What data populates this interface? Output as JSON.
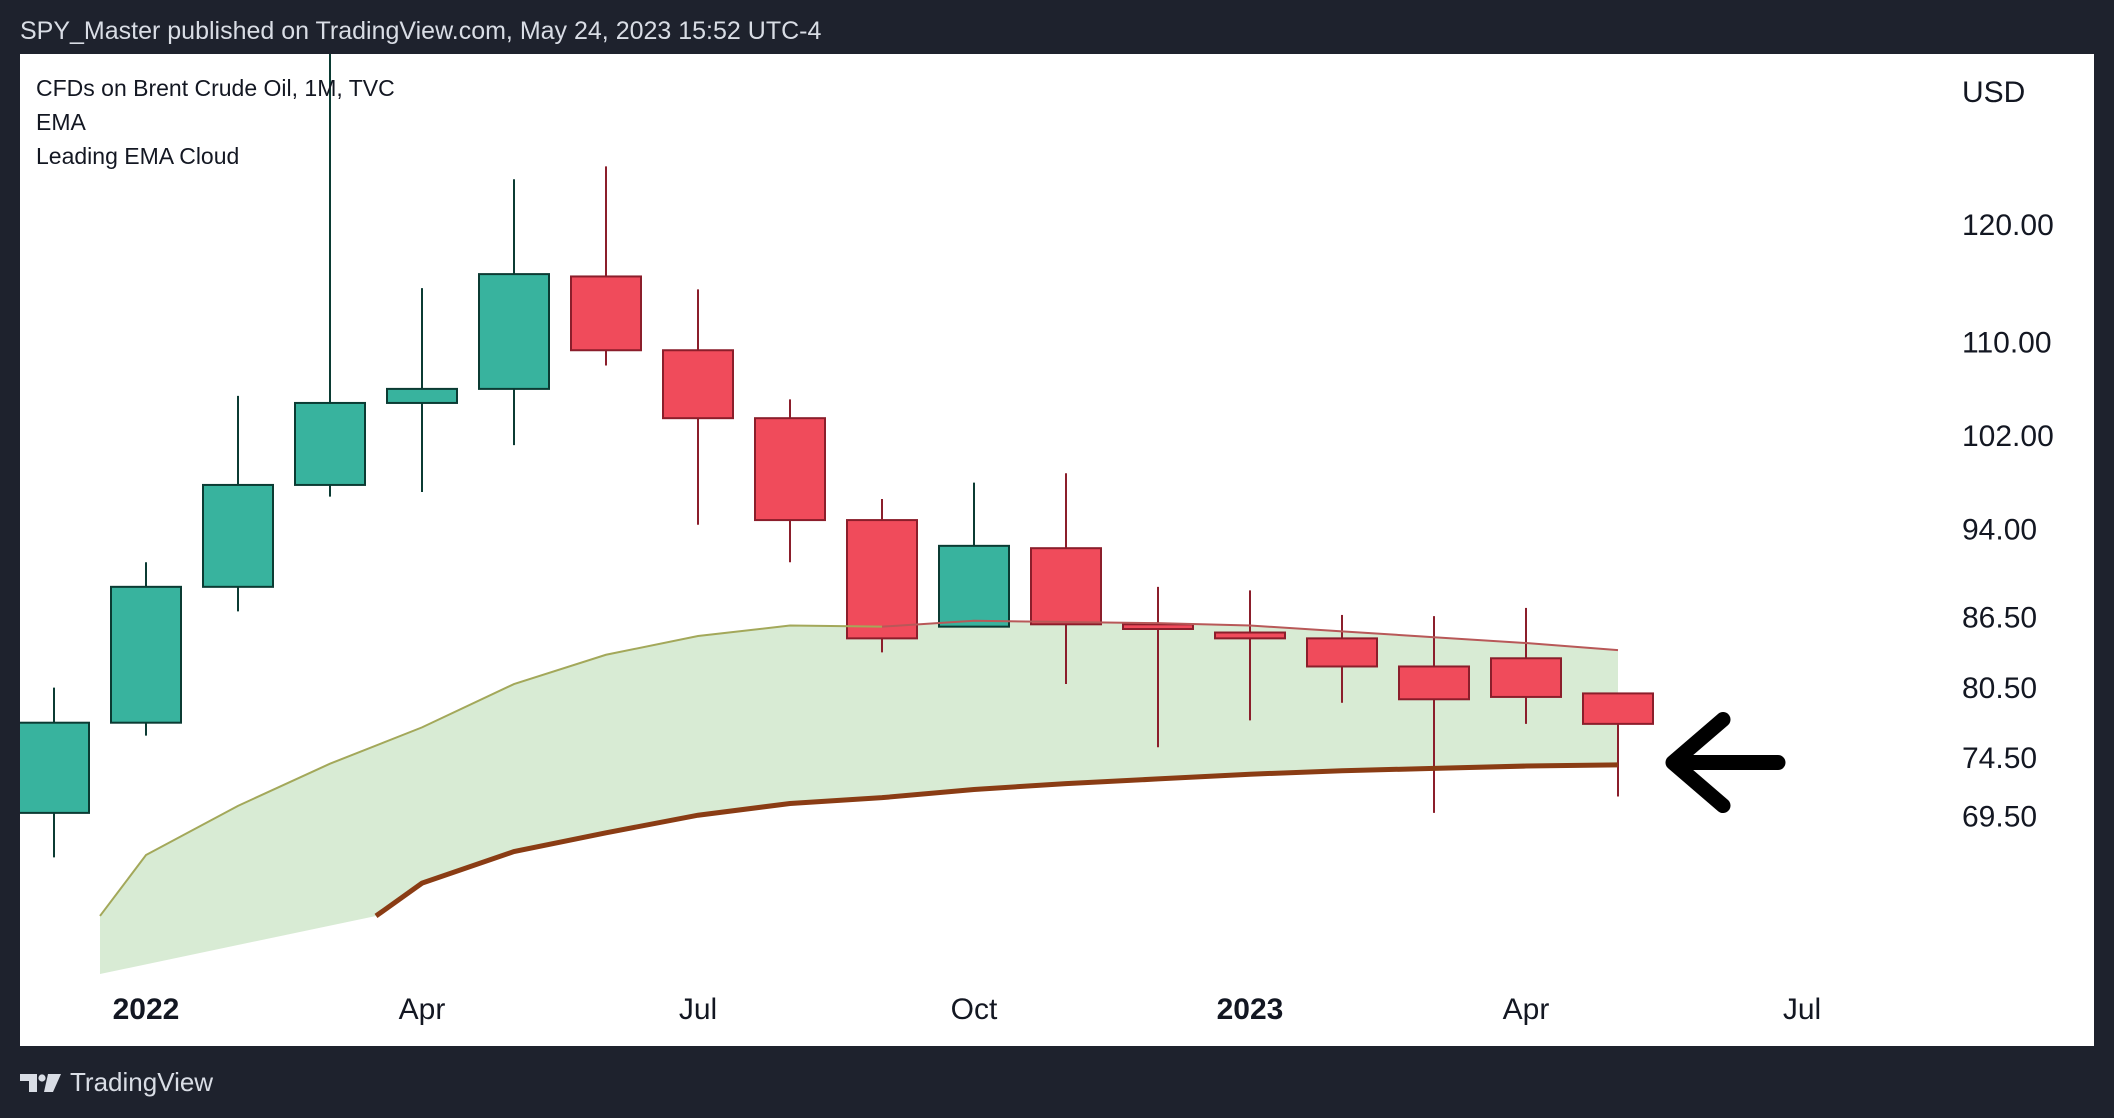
{
  "header": {
    "publish_text": "SPY_Master published on TradingView.com, May 24, 2023 15:52 UTC-4"
  },
  "footer": {
    "brand": "TradingView"
  },
  "colors": {
    "bull": "#38b39e",
    "bear": "#f04b5b",
    "bull_wick": "#0b3b33",
    "bear_wick": "#8b1e2b",
    "cloud_fill": "#d8ebd4",
    "ema_fast": "#a3a85a",
    "ema_slow": "#8a3c14",
    "ema_fast_bear": "#b85858",
    "arrow": "#000000"
  },
  "chart_data": {
    "type": "candlestick",
    "title": "CFDs on Brent Crude Oil, 1M, TVC",
    "indicators": [
      "EMA",
      "Leading EMA Cloud"
    ],
    "currency_label": "USD",
    "y_ticks": [
      "120.00",
      "110.00",
      "102.00",
      "94.00",
      "86.50",
      "80.50",
      "74.50",
      "69.50"
    ],
    "x_ticks": [
      {
        "label": "2022",
        "bold": true,
        "month_index": 1
      },
      {
        "label": "Apr",
        "bold": false,
        "month_index": 4
      },
      {
        "label": "Jul",
        "bold": false,
        "month_index": 7
      },
      {
        "label": "Oct",
        "bold": false,
        "month_index": 10
      },
      {
        "label": "2023",
        "bold": true,
        "month_index": 13
      },
      {
        "label": "Apr",
        "bold": false,
        "month_index": 16
      },
      {
        "label": "Jul",
        "bold": false,
        "month_index": 19
      }
    ],
    "candles": [
      {
        "month": "2021-12",
        "month_index": 0,
        "open": 70.0,
        "high": 80.7,
        "low": 66.2,
        "close": 77.7
      },
      {
        "month": "2022-01",
        "month_index": 1,
        "open": 77.7,
        "high": 91.4,
        "low": 76.6,
        "close": 89.3
      },
      {
        "month": "2022-02",
        "month_index": 2,
        "open": 89.3,
        "high": 105.6,
        "low": 87.2,
        "close": 98.0
      },
      {
        "month": "2022-03",
        "month_index": 3,
        "open": 98.0,
        "high": 139.1,
        "low": 97.0,
        "close": 105.0
      },
      {
        "month": "2022-04",
        "month_index": 4,
        "open": 105.0,
        "high": 114.8,
        "low": 97.4,
        "close": 106.2
      },
      {
        "month": "2022-05",
        "month_index": 5,
        "open": 106.2,
        "high": 124.1,
        "low": 101.4,
        "close": 116.0
      },
      {
        "month": "2022-06",
        "month_index": 6,
        "open": 115.8,
        "high": 125.2,
        "low": 108.2,
        "close": 109.5
      },
      {
        "month": "2022-07",
        "month_index": 7,
        "open": 109.5,
        "high": 114.7,
        "low": 94.6,
        "close": 103.7
      },
      {
        "month": "2022-08",
        "month_index": 8,
        "open": 103.7,
        "high": 105.3,
        "low": 91.4,
        "close": 95.0
      },
      {
        "month": "2022-09",
        "month_index": 9,
        "open": 95.0,
        "high": 96.8,
        "low": 83.7,
        "close": 84.9
      },
      {
        "month": "2022-10",
        "month_index": 10,
        "open": 85.9,
        "high": 98.2,
        "low": 85.9,
        "close": 92.8
      },
      {
        "month": "2022-11",
        "month_index": 11,
        "open": 92.6,
        "high": 99.0,
        "low": 81.0,
        "close": 86.1
      },
      {
        "month": "2022-12",
        "month_index": 12,
        "open": 86.1,
        "high": 89.3,
        "low": 75.6,
        "close": 85.7
      },
      {
        "month": "2023-01",
        "month_index": 13,
        "open": 85.4,
        "high": 89.0,
        "low": 77.9,
        "close": 84.9
      },
      {
        "month": "2023-02",
        "month_index": 14,
        "open": 84.9,
        "high": 86.9,
        "low": 79.4,
        "close": 82.5
      },
      {
        "month": "2023-03",
        "month_index": 15,
        "open": 82.5,
        "high": 86.8,
        "low": 70.0,
        "close": 79.7
      },
      {
        "month": "2023-04",
        "month_index": 16,
        "open": 83.2,
        "high": 87.5,
        "low": 77.6,
        "close": 79.9
      },
      {
        "month": "2023-05",
        "month_index": 17,
        "open": 80.2,
        "high": 80.2,
        "low": 71.4,
        "close": 77.6
      }
    ],
    "ema_fast": {
      "name": "Leading EMA Cloud upper",
      "points": [
        {
          "month_index": 0.5,
          "value": 61.2
        },
        {
          "month_index": 1,
          "value": 66.4
        },
        {
          "month_index": 2,
          "value": 70.6
        },
        {
          "month_index": 3,
          "value": 74.2
        },
        {
          "month_index": 4,
          "value": 77.3
        },
        {
          "month_index": 5,
          "value": 81.0
        },
        {
          "month_index": 6,
          "value": 83.5
        },
        {
          "month_index": 7,
          "value": 85.1
        },
        {
          "month_index": 8,
          "value": 86.0
        },
        {
          "month_index": 9,
          "value": 85.9
        },
        {
          "month_index": 10,
          "value": 86.4
        },
        {
          "month_index": 11,
          "value": 86.3
        },
        {
          "month_index": 12,
          "value": 86.2
        },
        {
          "month_index": 13,
          "value": 86.0
        },
        {
          "month_index": 14,
          "value": 85.5
        },
        {
          "month_index": 15,
          "value": 85.0
        },
        {
          "month_index": 16,
          "value": 84.5
        },
        {
          "month_index": 17,
          "value": 83.9
        }
      ]
    },
    "ema_slow": {
      "name": "EMA",
      "points": [
        {
          "month_index": 3.5,
          "value": 61.2
        },
        {
          "month_index": 4,
          "value": 64.0
        },
        {
          "month_index": 5,
          "value": 66.7
        },
        {
          "month_index": 6,
          "value": 68.3
        },
        {
          "month_index": 7,
          "value": 69.8
        },
        {
          "month_index": 8,
          "value": 70.8
        },
        {
          "month_index": 9,
          "value": 71.3
        },
        {
          "month_index": 10,
          "value": 72.0
        },
        {
          "month_index": 11,
          "value": 72.5
        },
        {
          "month_index": 12,
          "value": 72.9
        },
        {
          "month_index": 13,
          "value": 73.3
        },
        {
          "month_index": 14,
          "value": 73.6
        },
        {
          "month_index": 15,
          "value": 73.8
        },
        {
          "month_index": 16,
          "value": 74.0
        },
        {
          "month_index": 17,
          "value": 74.1
        }
      ]
    },
    "annotation": {
      "type": "arrow",
      "direction": "left",
      "points_to_value": 74.3,
      "points_to_month_index": 17
    }
  }
}
